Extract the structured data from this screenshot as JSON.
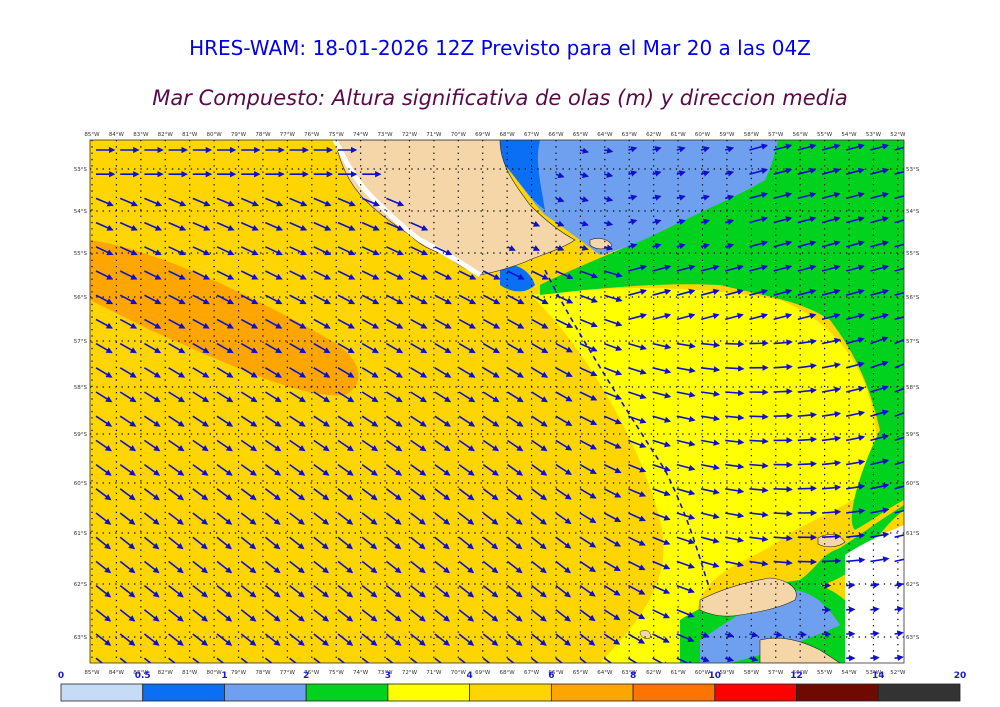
{
  "title": "HRES-WAM: 18-01-2026 12Z Previsto para el Mar 20 a las 04Z",
  "subtitle": "Mar Compuesto: Altura significativa de olas (m) y direccion media",
  "lon_labels": [
    "85°W",
    "84°W",
    "83°W",
    "82°W",
    "81°W",
    "80°W",
    "79°W",
    "78°W",
    "77°W",
    "76°W",
    "75°W",
    "74°W",
    "73°W",
    "72°W",
    "71°W",
    "70°W",
    "69°W",
    "68°W",
    "67°W",
    "66°W",
    "65°W",
    "64°W",
    "63°W",
    "62°W",
    "61°W",
    "60°W",
    "59°W",
    "58°W",
    "57°W",
    "56°W",
    "55°W",
    "54°W",
    "53°W",
    "52°W"
  ],
  "lat_labels": [
    "53°S",
    "54°S",
    "55°S",
    "56°S",
    "57°S",
    "58°S",
    "59°S",
    "60°S",
    "61°S",
    "62°S",
    "63°S"
  ],
  "colorbar": {
    "bins": [
      {
        "label": "0",
        "color": "#c6dcf6"
      },
      {
        "label": "0.5",
        "color": "#0a6ff5"
      },
      {
        "label": "1",
        "color": "#6fa0f0"
      },
      {
        "label": "2",
        "color": "#00d21e"
      },
      {
        "label": "3",
        "color": "#ffff00"
      },
      {
        "label": "4",
        "color": "#ffd500"
      },
      {
        "label": "6",
        "color": "#ffa500"
      },
      {
        "label": "8",
        "color": "#ff7300"
      },
      {
        "label": "10",
        "color": "#ff0000"
      },
      {
        "label": "12",
        "color": "#6e0a00"
      },
      {
        "label": "14",
        "color": "#333333"
      }
    ],
    "end_label": "20"
  },
  "colors": {
    "arrow": "#1010cc",
    "land": "#f5d6a8",
    "sea_ice": "#ffffff"
  }
}
